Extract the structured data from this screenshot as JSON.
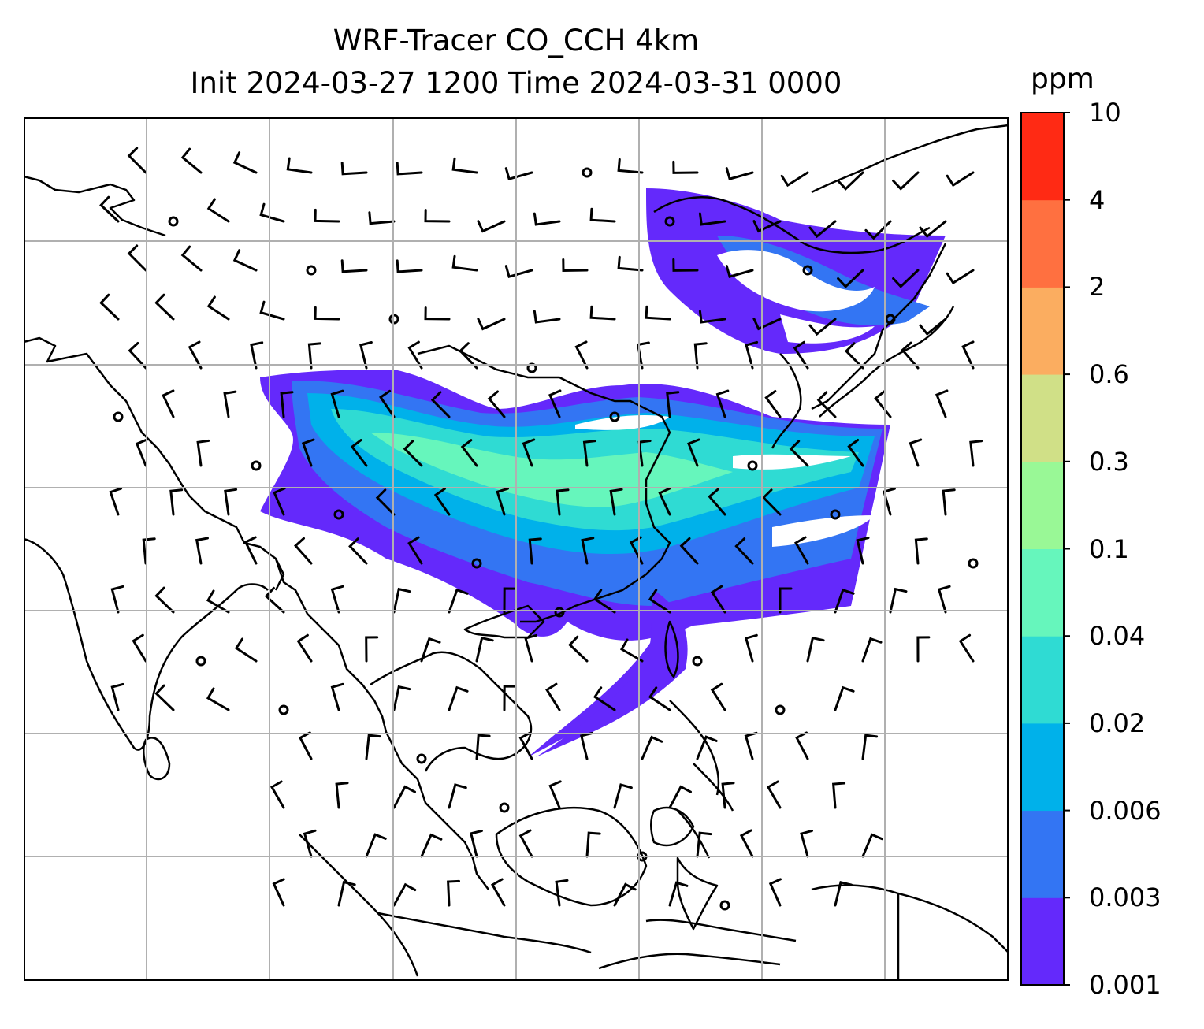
{
  "title_line1": "WRF-Tracer CO_CCH 4km",
  "title_line2": "Init 2024-03-27 1200 Time 2024-03-31 0000",
  "colorbar": {
    "unit": "ppm",
    "levels": [
      "0.001",
      "0.003",
      "0.006",
      "0.02",
      "0.04",
      "0.1",
      "0.3",
      "0.6",
      "2",
      "4",
      "10"
    ],
    "colors": [
      "#6429fb",
      "#3375f3",
      "#00b1ea",
      "#2fdbd3",
      "#66f6bc",
      "#99f896",
      "#d0e087",
      "#fbad60",
      "#ff7040",
      "#ff2a14"
    ]
  },
  "map": {
    "gridlines": "on",
    "gridline_color": "#b0b0b0",
    "coastline_color": "#000000",
    "overlay": "wind barbs",
    "shaded_field": "CO_CCH tracer concentration"
  }
}
